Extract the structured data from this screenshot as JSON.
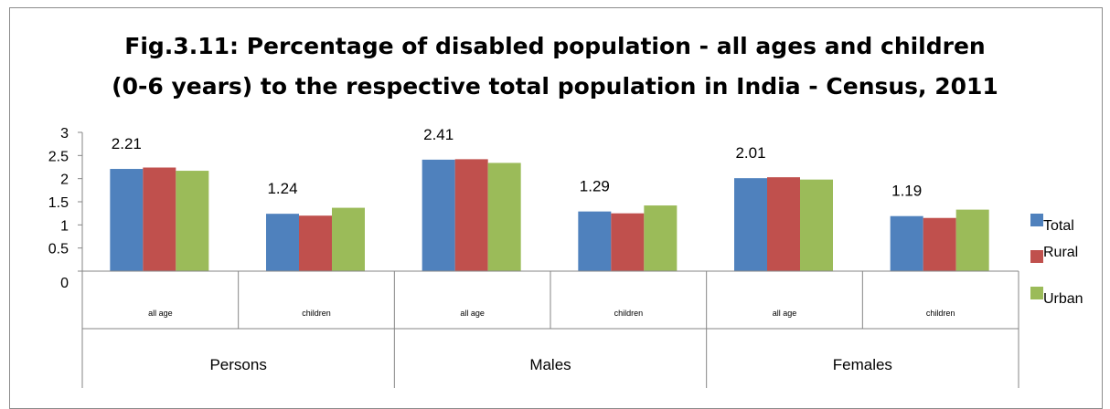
{
  "chart_data": {
    "type": "bar",
    "title_line1": "Fig.3.11: Percentage of disabled population - all ages and children",
    "title_line2": "(0-6 years) to the respective total population in India - Census, 2011",
    "ylim": [
      0,
      3
    ],
    "yticks": [
      "0",
      "0.5",
      "1",
      "1.5",
      "2",
      "2.5",
      "3"
    ],
    "groups": [
      "Persons",
      "Males",
      "Females"
    ],
    "categories": [
      "all age",
      "children",
      "all age",
      "children",
      "all age",
      "children"
    ],
    "series": [
      {
        "name": "Total",
        "color": "#4f81bd",
        "values": [
          2.21,
          1.24,
          2.41,
          1.29,
          2.01,
          1.19
        ]
      },
      {
        "name": "Rural",
        "color": "#c0504d",
        "values": [
          2.24,
          1.2,
          2.42,
          1.25,
          2.03,
          1.15
        ]
      },
      {
        "name": "Urban",
        "color": "#9bbb59",
        "values": [
          2.17,
          1.37,
          2.34,
          1.42,
          1.98,
          1.33
        ]
      }
    ],
    "data_labels": [
      "2.21",
      "1.24",
      "2.41",
      "1.29",
      "2.01",
      "1.19"
    ],
    "legend_position": "right",
    "grid": false
  }
}
